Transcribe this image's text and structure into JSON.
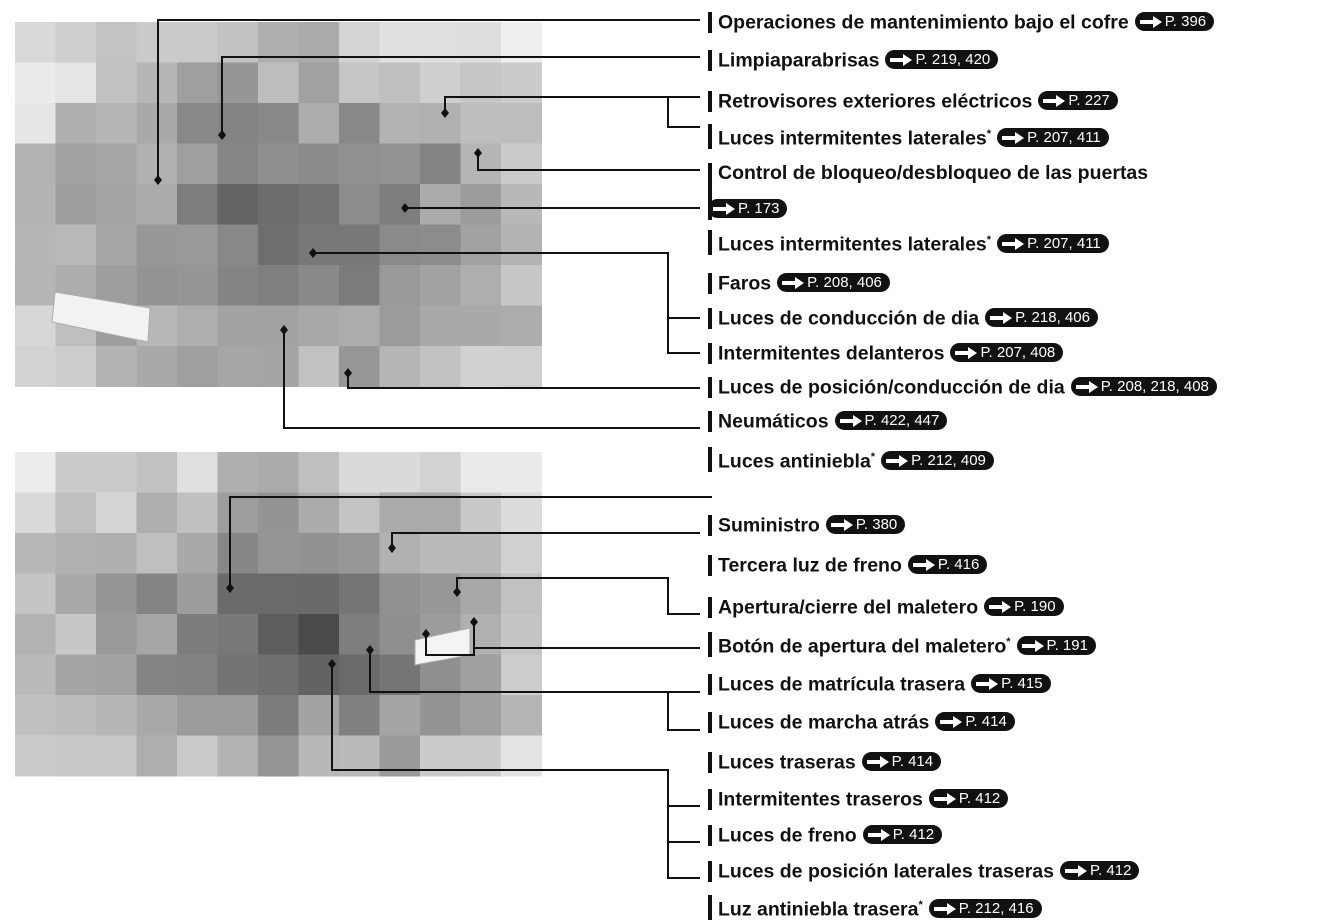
{
  "front": {
    "labels": [
      {
        "text": "Operaciones de mantenimiento bajo el cofre",
        "ref": "P. 396"
      },
      {
        "text": "Limpiaparabrisas",
        "ref": "P. 219, 420"
      },
      {
        "text": "Retrovisores exteriores eléctricos",
        "ref": "P. 227"
      },
      {
        "text": "Luces intermitentes laterales",
        "note": "*",
        "ref": "P. 207, 411"
      },
      {
        "text": "Control de bloqueo/desbloqueo de las puertas",
        "ref": "P. 173"
      },
      {
        "text": "Luces intermitentes laterales",
        "note": "*",
        "ref": "P. 207, 411"
      },
      {
        "text": "Faros",
        "ref": "P. 208, 406"
      },
      {
        "text": "Luces de conducción de dia",
        "ref": "P. 218, 406"
      },
      {
        "text": "Intermitentes delanteros",
        "ref": "P. 207, 408"
      },
      {
        "text": "Luces de posición/conducción de dia",
        "ref": "P. 208, 218, 408"
      },
      {
        "text": "Neumáticos",
        "ref": "P. 422, 447"
      },
      {
        "text": "Luces antiniebla",
        "note": "*",
        "ref": "P. 212, 409"
      }
    ]
  },
  "rear": {
    "labels": [
      {
        "text": "Suministro",
        "ref": "P. 380"
      },
      {
        "text": "Tercera luz de freno",
        "ref": "P. 416"
      },
      {
        "text": "Apertura/cierre del maletero",
        "ref": "P. 190"
      },
      {
        "text": "Botón de apertura del maletero",
        "note": "*",
        "ref": "P. 191"
      },
      {
        "text": "Luces de matrícula trasera",
        "ref": "P. 415"
      },
      {
        "text": "Luces de marcha atrás",
        "ref": "P. 414"
      },
      {
        "text": "Luces traseras",
        "ref": "P. 414"
      },
      {
        "text": "Intermitentes traseros",
        "ref": "P. 412"
      },
      {
        "text": "Luces de freno",
        "ref": "P. 412"
      },
      {
        "text": "Luces de posición laterales traseras",
        "ref": "P. 412"
      },
      {
        "text": "Luz antiniebla trasera",
        "note": "*",
        "ref": "P. 212, 416"
      }
    ]
  }
}
